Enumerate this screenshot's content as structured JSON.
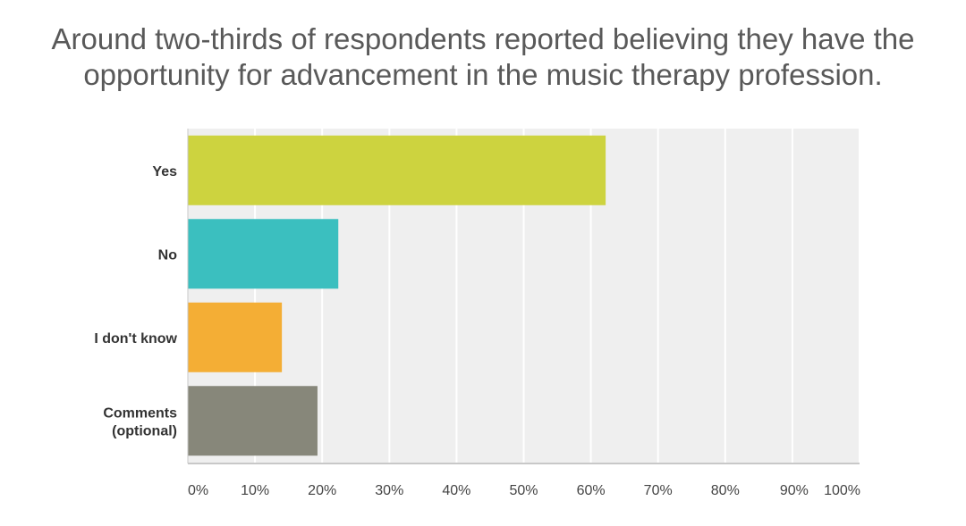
{
  "title_lines": [
    "Around two-thirds of respondents reported believing they have the",
    "opportunity for advancement in the music therapy profession."
  ],
  "chart_data": {
    "type": "bar",
    "orientation": "horizontal",
    "title": "Around two-thirds of respondents reported believing they have the opportunity for advancement in the music therapy profession.",
    "categories": [
      "Yes",
      "No",
      "I don't know",
      "Comments (optional)"
    ],
    "category_lines": [
      [
        "Yes"
      ],
      [
        "No"
      ],
      [
        "I don't know"
      ],
      [
        "Comments",
        "(optional)"
      ]
    ],
    "values": [
      62.2,
      22.4,
      14.0,
      19.3
    ],
    "colors": [
      "#cdd33f",
      "#3bbfbf",
      "#f4ae35",
      "#87877a"
    ],
    "xlim": [
      0,
      100
    ],
    "ticks": [
      0,
      10,
      20,
      30,
      40,
      50,
      60,
      70,
      80,
      90,
      100
    ],
    "tick_labels": [
      "0%",
      "10%",
      "20%",
      "30%",
      "40%",
      "50%",
      "60%",
      "70%",
      "80%",
      "90%",
      "100%"
    ],
    "grid": true,
    "xlabel": "",
    "ylabel": ""
  }
}
